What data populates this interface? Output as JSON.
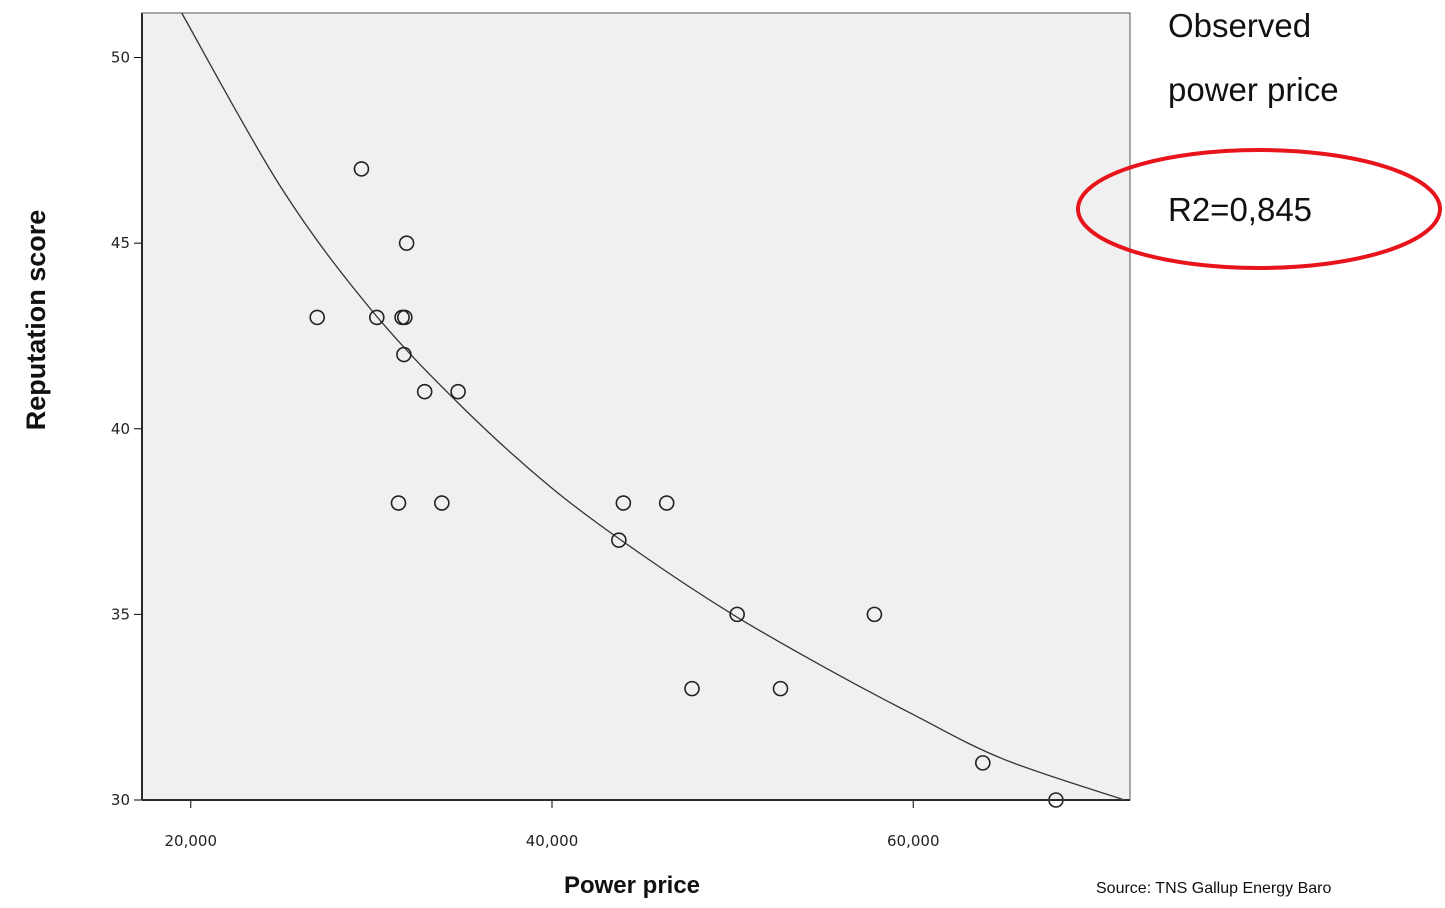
{
  "chart_data": {
    "type": "scatter",
    "xlabel": "Power price",
    "ylabel": "Reputation score",
    "xlim": [
      17300,
      72000
    ],
    "ylim": [
      30,
      51.2
    ],
    "x_ticks": [
      20000,
      40000,
      60000
    ],
    "x_tick_labels": [
      "20,000",
      "40,000",
      "60,000"
    ],
    "y_ticks": [
      30,
      35,
      40,
      45,
      50
    ],
    "y_tick_labels": [
      "30",
      "35",
      "40",
      "45",
      "50"
    ],
    "grid": false,
    "plot_background": "#f0f0f0",
    "points": [
      {
        "x": 27000,
        "y": 43
      },
      {
        "x": 29450,
        "y": 47
      },
      {
        "x": 30300,
        "y": 43
      },
      {
        "x": 31500,
        "y": 38
      },
      {
        "x": 31700,
        "y": 43
      },
      {
        "x": 31800,
        "y": 42
      },
      {
        "x": 31850,
        "y": 43
      },
      {
        "x": 31950,
        "y": 45
      },
      {
        "x": 32950,
        "y": 41
      },
      {
        "x": 33900,
        "y": 38
      },
      {
        "x": 34800,
        "y": 41
      },
      {
        "x": 43700,
        "y": 37
      },
      {
        "x": 43950,
        "y": 38
      },
      {
        "x": 46350,
        "y": 38
      },
      {
        "x": 47750,
        "y": 33
      },
      {
        "x": 50250,
        "y": 35
      },
      {
        "x": 52650,
        "y": 33
      },
      {
        "x": 57850,
        "y": 35
      },
      {
        "x": 63850,
        "y": 31
      },
      {
        "x": 67900,
        "y": 30
      }
    ],
    "fit_line": {
      "type": "power",
      "points": [
        {
          "x": 19500,
          "y": 51.2
        },
        {
          "x": 25000,
          "y": 46.5
        },
        {
          "x": 30000,
          "y": 43.2
        },
        {
          "x": 35000,
          "y": 40.6
        },
        {
          "x": 40000,
          "y": 38.4
        },
        {
          "x": 45000,
          "y": 36.6
        },
        {
          "x": 50000,
          "y": 35.0
        },
        {
          "x": 55000,
          "y": 33.6
        },
        {
          "x": 60000,
          "y": 32.3
        },
        {
          "x": 65000,
          "y": 31.1
        },
        {
          "x": 71700,
          "y": 30.0
        }
      ]
    }
  },
  "annotation": {
    "legend_lines": [
      "Observed",
      "power price"
    ],
    "r2": "R2=0,845",
    "highlight_color": "#e8141b"
  },
  "source": "Source: TNS Gallup Energy Baro"
}
